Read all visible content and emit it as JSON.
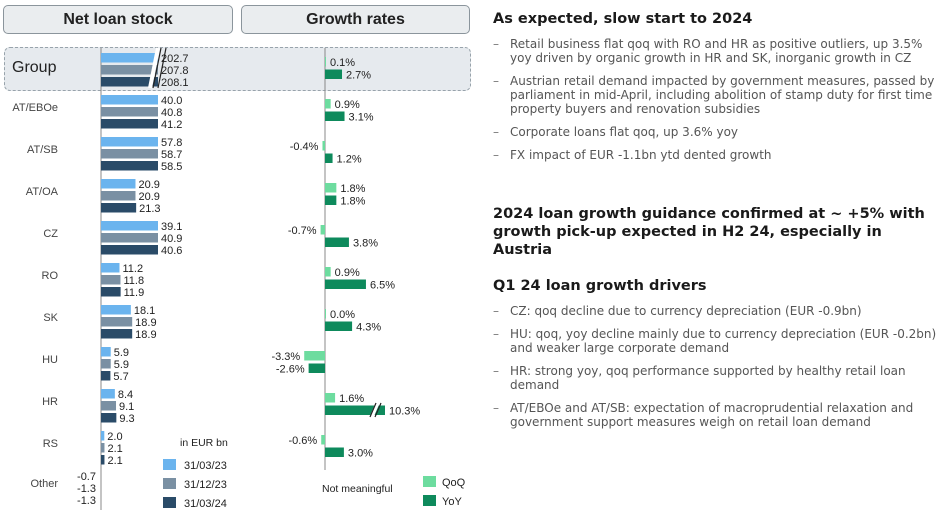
{
  "headers": {
    "stock": "Net loan stock",
    "growth": "Growth rates"
  },
  "chart_data": {
    "type": "bar",
    "categories": [
      "Group",
      "AT/EBOe",
      "AT/SB",
      "AT/OA",
      "CZ",
      "RO",
      "SK",
      "HU",
      "HR",
      "RS",
      "Other"
    ],
    "unit_note": "in EUR bn",
    "stock_series": [
      {
        "name": "31/03/23",
        "color": "#6bb4ee",
        "values": [
          202.7,
          40.0,
          57.8,
          20.9,
          39.1,
          11.2,
          18.1,
          5.9,
          8.4,
          2.0,
          -0.7
        ],
        "labels": [
          "202.7",
          "40.0",
          "57.8",
          "20.9",
          "39.1",
          "11.2",
          "18.1",
          "5.9",
          "8.4",
          "2.0",
          "-0.7"
        ]
      },
      {
        "name": "31/12/23",
        "color": "#7a90a3",
        "values": [
          207.8,
          40.8,
          58.7,
          20.9,
          40.9,
          11.8,
          18.9,
          5.9,
          9.1,
          2.1,
          -1.3
        ],
        "labels": [
          "207.8",
          "40.8",
          "58.7",
          "20.9",
          "40.9",
          "11.8",
          "18.9",
          "5.9",
          "9.1",
          "2.1",
          "-1.3"
        ]
      },
      {
        "name": "31/03/24",
        "color": "#2a4b68",
        "values": [
          208.1,
          41.2,
          58.5,
          21.3,
          40.6,
          11.9,
          18.9,
          5.7,
          9.3,
          2.1,
          -1.3
        ],
        "labels": [
          "208.1",
          "41.2",
          "58.5",
          "21.3",
          "40.6",
          "11.9",
          "18.9",
          "5.7",
          "9.3",
          "2.1",
          "-1.3"
        ]
      }
    ],
    "growth_series": [
      {
        "name": "QoQ",
        "color": "#6ddc9f",
        "values": [
          0.1,
          0.9,
          -0.4,
          1.8,
          -0.7,
          0.9,
          0.0,
          -3.3,
          1.6,
          -0.6,
          null
        ],
        "labels": [
          "0.1%",
          "0.9%",
          "-0.4%",
          "1.8%",
          "-0.7%",
          "0.9%",
          "0.0%",
          "-3.3%",
          "1.6%",
          "-0.6%",
          ""
        ]
      },
      {
        "name": "YoY",
        "color": "#0e8a5c",
        "values": [
          2.7,
          3.1,
          1.2,
          1.8,
          3.8,
          6.5,
          4.3,
          -2.6,
          10.3,
          3.0,
          null
        ],
        "labels": [
          "2.7%",
          "3.1%",
          "1.2%",
          "1.8%",
          "3.8%",
          "6.5%",
          "4.3%",
          "-2.6%",
          "10.3%",
          "3.0%",
          ""
        ]
      }
    ],
    "not_meaningful_note": "Not meaningful",
    "axis_breaks": [
      "Group stock bars",
      "HR YoY bar"
    ]
  },
  "right_panel": {
    "heading1": "As expected, slow start to 2024",
    "bullets1": [
      "Retail business flat qoq with RO and HR as positive outliers, up 3.5% yoy driven by organic growth in HR and SK, inorganic growth in CZ",
      "Austrian retail demand impacted by government measures, passed by parliament in mid-April, including abolition of stamp duty for first time property buyers and renovation subsidies",
      "Corporate loans flat qoq, up 3.6% yoy",
      "FX impact of EUR -1.1bn ytd dented growth"
    ],
    "heading2": "2024 loan growth guidance confirmed at ~ +5% with growth pick-up expected in H2 24, especially in Austria",
    "heading3": "Q1 24 loan growth drivers",
    "bullets3": [
      "CZ: qoq decline due to currency depreciation (EUR -0.9bn)",
      "HU: qoq, yoy decline mainly due to currency depreciation (EUR -0.2bn) and weaker large corporate demand",
      "HR: strong yoy, qoq performance supported by healthy retail loan demand",
      "AT/EBOe and AT/SB: expectation of macroprudential relaxation and government support measures weigh on retail loan demand"
    ],
    "dash": "–"
  }
}
